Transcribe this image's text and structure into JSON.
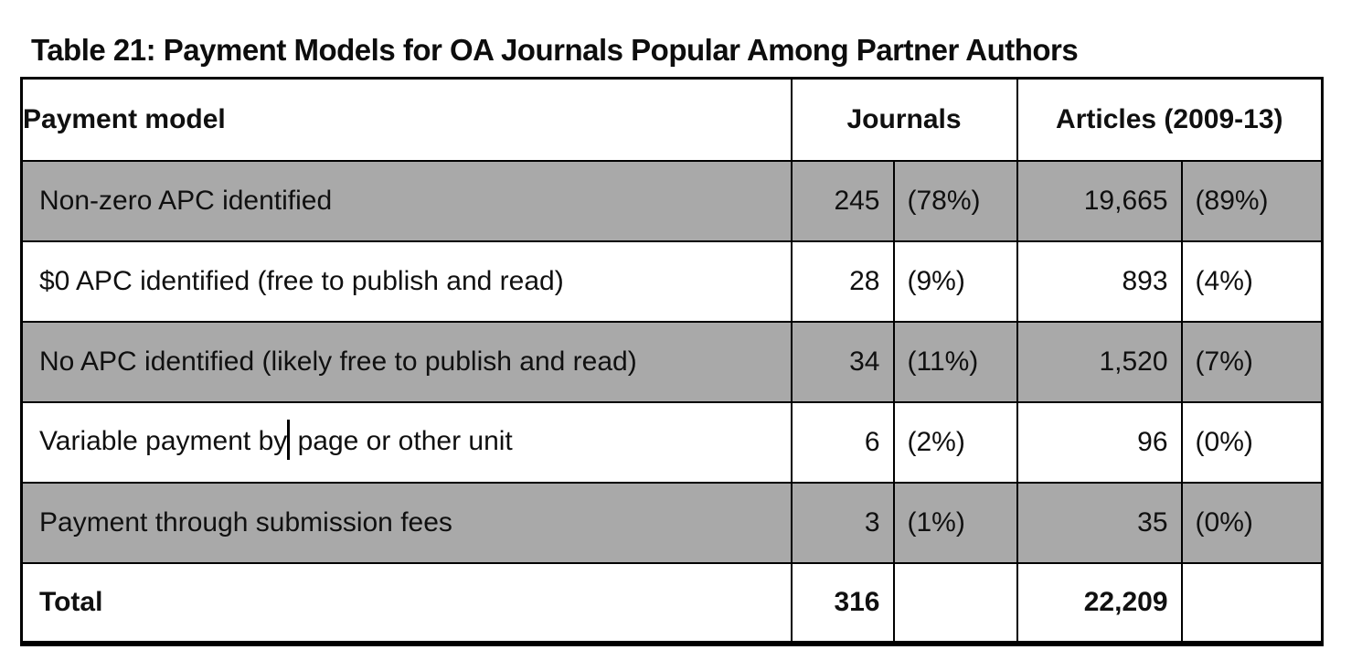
{
  "title": "Table 21: Payment Models for OA Journals Popular Among Partner Authors",
  "colors": {
    "row_shade": "#a9a9a9",
    "border": "#000000",
    "text": "#101010",
    "background": "#ffffff"
  },
  "table": {
    "headers": {
      "payment_model": "Payment model",
      "journals": "Journals",
      "articles": "Articles (2009-13)"
    },
    "rows": [
      {
        "label": "Non-zero APC identified",
        "journals_count": "245",
        "journals_pct": "(78%)",
        "articles_count": "19,665",
        "articles_pct": "(89%)"
      },
      {
        "label": "$0 APC identified (free to publish and read)",
        "journals_count": "28",
        "journals_pct": "(9%)",
        "articles_count": "893",
        "articles_pct": "(4%)"
      },
      {
        "label": "No APC identified (likely free to publish and read)",
        "journals_count": "34",
        "journals_pct": "(11%)",
        "articles_count": "1,520",
        "articles_pct": "(7%)"
      },
      {
        "label_pre": "Variable payment by",
        "label_post": " page or other unit",
        "journals_count": "6",
        "journals_pct": "(2%)",
        "articles_count": "96",
        "articles_pct": "(0%)"
      },
      {
        "label": "Payment through submission fees",
        "journals_count": "3",
        "journals_pct": "(1%)",
        "articles_count": "35",
        "articles_pct": "(0%)"
      }
    ],
    "total_row": {
      "label": "Total",
      "journals_count": "316",
      "journals_pct": "",
      "articles_count": "22,209",
      "articles_pct": ""
    }
  }
}
